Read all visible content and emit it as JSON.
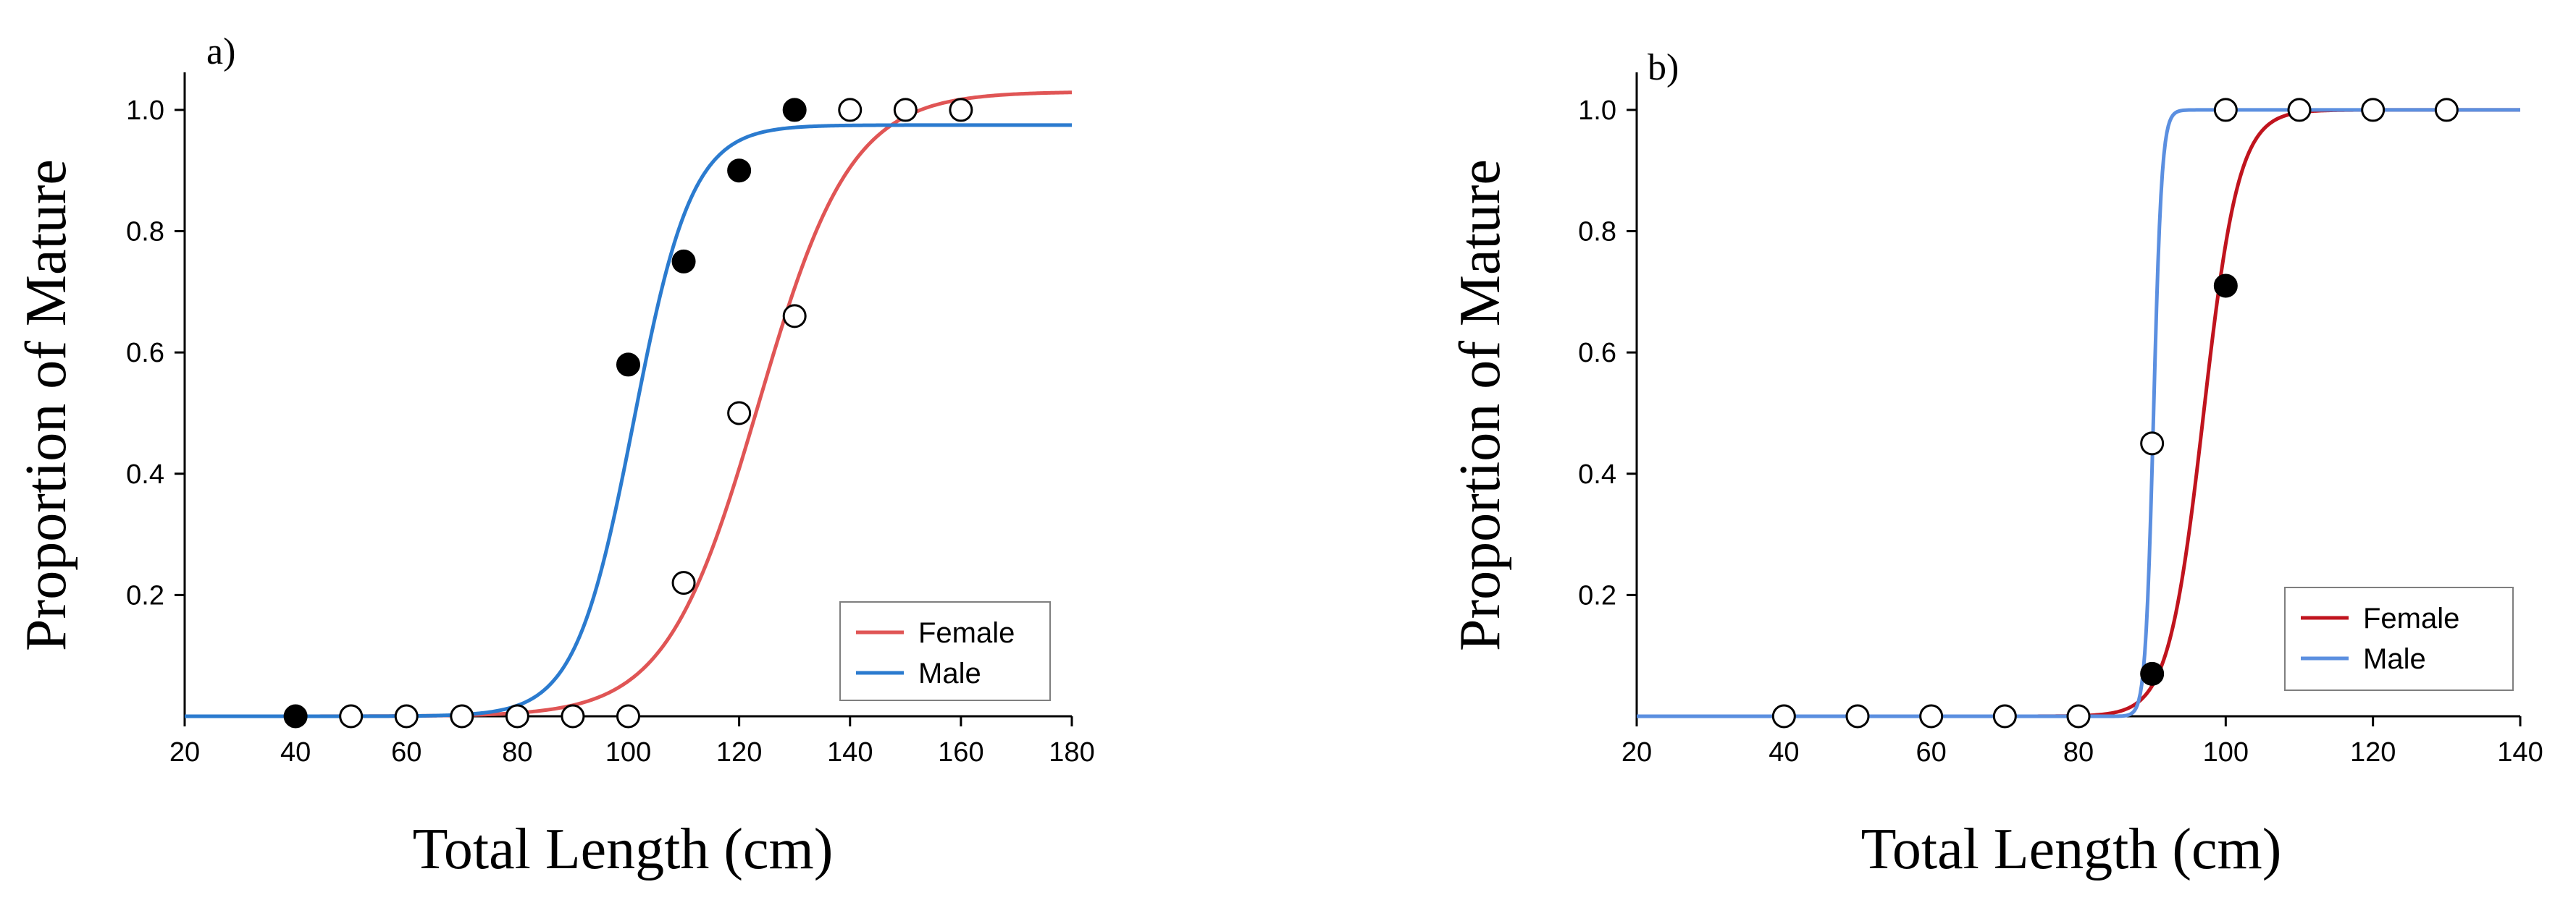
{
  "chart_data": [
    {
      "type": "line",
      "panel_label": "a)",
      "title": "",
      "xlabel": "Total Length (cm)",
      "ylabel": "Proportion of Mature",
      "xlim": [
        20,
        180
      ],
      "ylim": [
        0,
        1.05
      ],
      "xticks": [
        "20",
        "40",
        "60",
        "80",
        "100",
        "120",
        "140",
        "160",
        "180"
      ],
      "yticks": [
        "0.2",
        "0.4",
        "0.6",
        "0.8",
        "1.0"
      ],
      "grid": false,
      "legend_position": "bottom-right",
      "curves": [
        {
          "name": "Female",
          "color": "#e05555",
          "asymptote": 1.03,
          "l50": 123.5,
          "slope": 0.12
        },
        {
          "name": "Male",
          "color": "#2b7bcf",
          "asymptote": 0.975,
          "l50": 101,
          "slope": 0.19
        }
      ],
      "points": [
        {
          "series": "Female",
          "marker": "open",
          "x": [
            50,
            60,
            70,
            80,
            90,
            100,
            110,
            120,
            130,
            140,
            150,
            160
          ],
          "y": [
            0,
            0,
            0,
            0,
            0,
            0,
            0.22,
            0.5,
            0.66,
            1.0,
            1.0,
            1.0
          ]
        },
        {
          "series": "Male",
          "marker": "filled",
          "x": [
            40,
            100,
            110,
            120,
            130
          ],
          "y": [
            0,
            0.58,
            0.75,
            0.9,
            1.0
          ]
        }
      ],
      "legend": [
        {
          "label": "Female",
          "color": "#e05555"
        },
        {
          "label": "Male",
          "color": "#2b7bcf"
        }
      ]
    },
    {
      "type": "line",
      "panel_label": "b)",
      "title": "",
      "xlabel": "Total Length (cm)",
      "ylabel": "Proportion of Mature",
      "xlim": [
        20,
        140
      ],
      "ylim": [
        0,
        1.05
      ],
      "xticks": [
        "20",
        "40",
        "60",
        "80",
        "100",
        "120",
        "140"
      ],
      "yticks": [
        "0.2",
        "0.4",
        "0.6",
        "0.8",
        "1.0"
      ],
      "grid": false,
      "legend_position": "bottom-right",
      "curves": [
        {
          "name": "Female",
          "color": "#c0141e",
          "asymptote": 1.0,
          "l50": 97,
          "slope": 0.42
        },
        {
          "name": "Male",
          "color": "#5b8fe0",
          "asymptote": 1.0,
          "l50": 90.2,
          "slope": 1.8
        }
      ],
      "points": [
        {
          "series": "Female",
          "marker": "open",
          "x": [
            40,
            50,
            60,
            70,
            80,
            90,
            100,
            110,
            120,
            130
          ],
          "y": [
            0,
            0,
            0,
            0,
            0,
            0.45,
            1.0,
            1.0,
            1.0,
            1.0
          ]
        },
        {
          "series": "Male",
          "marker": "filled",
          "x": [
            90,
            100
          ],
          "y": [
            0.07,
            0.71
          ]
        }
      ],
      "legend": [
        {
          "label": "Female",
          "color": "#c0141e"
        },
        {
          "label": "Male",
          "color": "#5b8fe0"
        }
      ]
    }
  ]
}
